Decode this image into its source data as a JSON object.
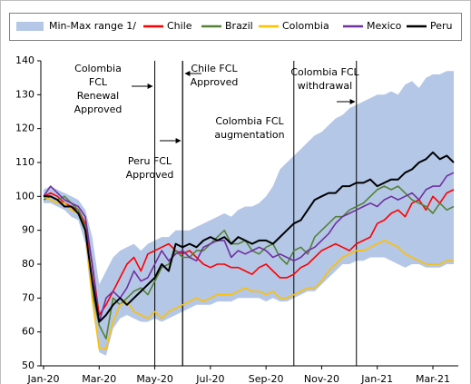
{
  "chart_data": {
    "type": "line",
    "categories": [
      "Jan-20",
      null,
      null,
      null,
      null,
      null,
      null,
      null,
      "Mar-20",
      null,
      null,
      null,
      null,
      null,
      null,
      null,
      "May-20",
      null,
      null,
      null,
      null,
      null,
      null,
      null,
      "Jul-20",
      null,
      null,
      null,
      null,
      null,
      null,
      null,
      "Sep-20",
      null,
      null,
      null,
      null,
      null,
      null,
      null,
      "Nov-20",
      null,
      null,
      null,
      null,
      null,
      null,
      null,
      "Jan-21",
      null,
      null,
      null,
      null,
      null,
      null,
      null,
      "Mar-21",
      null,
      null,
      null
    ],
    "ylim": [
      50,
      140
    ],
    "yticks": [
      50,
      60,
      70,
      80,
      90,
      100,
      110,
      120,
      130,
      140
    ],
    "range": {
      "name": "Min-Max range 1/",
      "color": "#b4c7e7",
      "lower": [
        98,
        98,
        97,
        96,
        94,
        93,
        86,
        68,
        54,
        53,
        61,
        64,
        65,
        64,
        63,
        63,
        64,
        63,
        64,
        65,
        66,
        67,
        68,
        68,
        68,
        69,
        69,
        69,
        70,
        70,
        70,
        70,
        69,
        70,
        69,
        69,
        70,
        71,
        72,
        72,
        74,
        76,
        78,
        80,
        80,
        81,
        81,
        82,
        82,
        82,
        81,
        80,
        79,
        80,
        80,
        79,
        79,
        79,
        80,
        80
      ],
      "upper": [
        102,
        103,
        102,
        101,
        100,
        99,
        96,
        88,
        74,
        78,
        82,
        84,
        85,
        86,
        84,
        86,
        87,
        88,
        88,
        90,
        90,
        90,
        91,
        92,
        93,
        94,
        95,
        94,
        96,
        97,
        97,
        98,
        100,
        103,
        108,
        110,
        112,
        114,
        116,
        118,
        119,
        121,
        123,
        124,
        126,
        127,
        128,
        129,
        130,
        130,
        131,
        130,
        133,
        134,
        132,
        135,
        136,
        136,
        137,
        137
      ]
    },
    "series": [
      {
        "name": "Chile",
        "color": "#ff0000",
        "values": [
          100,
          101,
          100,
          98,
          97,
          96,
          92,
          80,
          65,
          68,
          72,
          76,
          80,
          82,
          78,
          83,
          84,
          85,
          86,
          84,
          83,
          84,
          82,
          80,
          79,
          80,
          80,
          79,
          79,
          78,
          77,
          79,
          80,
          78,
          76,
          76,
          77,
          79,
          80,
          82,
          84,
          85,
          86,
          85,
          84,
          86,
          87,
          88,
          92,
          93,
          95,
          96,
          94,
          98,
          99,
          96,
          100,
          98,
          101,
          102
        ]
      },
      {
        "name": "Brazil",
        "color": "#548235",
        "values": [
          99,
          100,
          99,
          100,
          98,
          96,
          91,
          72,
          62,
          58,
          70,
          68,
          70,
          72,
          73,
          71,
          75,
          79,
          80,
          84,
          82,
          82,
          84,
          84,
          86,
          88,
          90,
          86,
          86,
          87,
          84,
          83,
          85,
          86,
          82,
          80,
          84,
          85,
          83,
          88,
          90,
          92,
          94,
          94,
          96,
          97,
          98,
          100,
          102,
          103,
          102,
          103,
          101,
          99,
          98,
          97,
          95,
          98,
          96,
          97
        ]
      },
      {
        "name": "Colombia",
        "color": "#ffc000",
        "values": [
          100,
          99,
          98,
          98,
          96,
          95,
          90,
          70,
          55,
          55,
          63,
          68,
          69,
          66,
          65,
          64,
          66,
          64,
          66,
          67,
          68,
          69,
          70,
          69,
          70,
          71,
          71,
          71,
          72,
          73,
          72,
          72,
          71,
          72,
          70,
          70,
          71,
          72,
          73,
          73,
          75,
          78,
          80,
          82,
          83,
          84,
          84,
          85,
          86,
          87,
          86,
          85,
          83,
          82,
          81,
          80,
          80,
          80,
          81,
          81
        ]
      },
      {
        "name": "Mexico",
        "color": "#7030a0",
        "values": [
          100,
          103,
          101,
          99,
          98,
          97,
          94,
          80,
          63,
          70,
          72,
          70,
          73,
          78,
          75,
          76,
          80,
          84,
          81,
          83,
          84,
          82,
          81,
          85,
          86,
          87,
          87,
          82,
          84,
          83,
          84,
          85,
          84,
          82,
          83,
          82,
          81,
          82,
          84,
          85,
          87,
          89,
          92,
          94,
          95,
          96,
          97,
          98,
          97,
          99,
          100,
          99,
          100,
          101,
          99,
          102,
          103,
          103,
          106,
          107
        ]
      },
      {
        "name": "Peru",
        "color": "#000000",
        "values": [
          100,
          100,
          99,
          97,
          97,
          95,
          90,
          75,
          63,
          65,
          68,
          70,
          68,
          70,
          72,
          74,
          76,
          80,
          78,
          86,
          85,
          86,
          85,
          87,
          88,
          87,
          88,
          86,
          88,
          87,
          86,
          87,
          87,
          86,
          88,
          90,
          92,
          93,
          96,
          99,
          100,
          101,
          101,
          103,
          103,
          104,
          104,
          105,
          103,
          104,
          105,
          105,
          107,
          108,
          110,
          111,
          113,
          111,
          112,
          110
        ]
      }
    ],
    "events": [
      {
        "x": 16,
        "lines": [
          "Colombia",
          "FCL",
          "Renewal",
          "Approved"
        ]
      },
      {
        "x": 20,
        "lines": [
          "Chile FCL",
          "Approved"
        ]
      },
      {
        "x": 20,
        "lines": [
          "Peru FCL",
          "Approved"
        ]
      },
      {
        "x": 36,
        "lines": [
          "Colombia FCL",
          "augmentation"
        ]
      },
      {
        "x": 45,
        "lines": [
          "Colombia FCL",
          "withdrawal"
        ]
      }
    ]
  }
}
